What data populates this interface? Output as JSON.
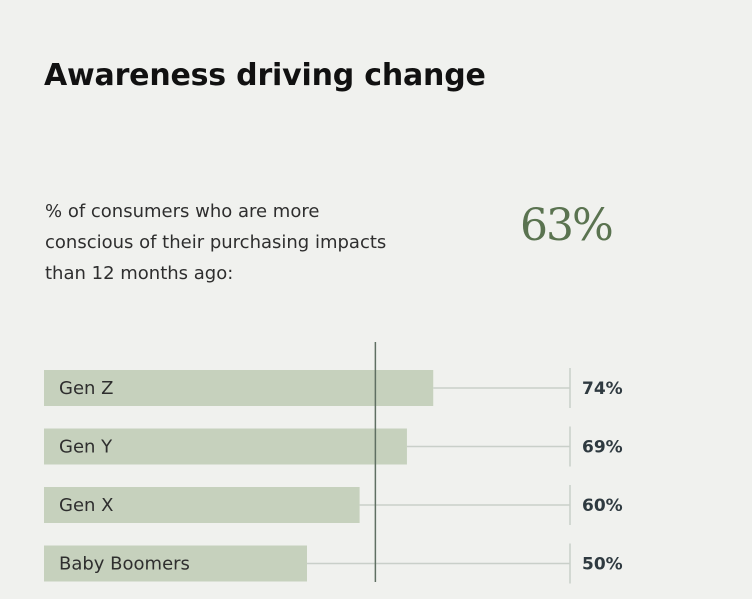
{
  "title": "Awareness driving change",
  "description_lines": [
    "% of consumers who are more",
    "conscious of their purchasing impacts",
    "than 12 months ago:"
  ],
  "headline_value": "63%",
  "colors": {
    "bar": "#c6d1bd",
    "accent": "#5a7350",
    "reference_line": "#5f6f62",
    "track_line": "#c9cfc9"
  },
  "chart_data": {
    "type": "bar",
    "orientation": "horizontal",
    "categories": [
      "Gen Z",
      "Gen Y",
      "Gen X",
      "Baby Boomers"
    ],
    "values": [
      74,
      69,
      60,
      50
    ],
    "value_labels": [
      "74%",
      "69%",
      "60%",
      "50%"
    ],
    "reference_value": 63,
    "xlim": [
      0,
      100
    ],
    "grid": false
  }
}
